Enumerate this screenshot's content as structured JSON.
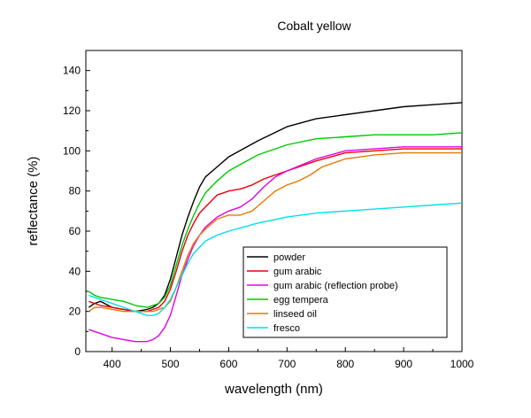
{
  "chart_data": {
    "type": "line",
    "title": "Cobalt yellow",
    "xlabel": "wavelength (nm)",
    "ylabel": "reflectance (%)",
    "xlim": [
      355,
      1000
    ],
    "ylim": [
      0,
      150
    ],
    "xticks": [
      400,
      500,
      600,
      700,
      800,
      900,
      1000
    ],
    "yticks": [
      0,
      20,
      40,
      60,
      80,
      100,
      120,
      140
    ],
    "grid": false,
    "legend_position": "bottom-right",
    "series": [
      {
        "name": "powder",
        "color": "#000000",
        "x": [
          360,
          370,
          380,
          400,
          420,
          440,
          460,
          470,
          480,
          490,
          500,
          510,
          520,
          530,
          540,
          550,
          560,
          580,
          600,
          650,
          700,
          750,
          800,
          850,
          900,
          950,
          1000
        ],
        "y": [
          22,
          24,
          25,
          22,
          21,
          20,
          21,
          22,
          24,
          28,
          36,
          47,
          58,
          67,
          75,
          82,
          87,
          92,
          97,
          105,
          112,
          116,
          118,
          120,
          122,
          123,
          124
        ]
      },
      {
        "name": "gum arabic",
        "color": "#e8000b",
        "x": [
          360,
          370,
          380,
          400,
          420,
          440,
          460,
          470,
          480,
          490,
          500,
          510,
          520,
          530,
          540,
          550,
          560,
          580,
          600,
          620,
          640,
          660,
          680,
          700,
          750,
          800,
          850,
          900,
          950,
          1000
        ],
        "y": [
          25,
          24,
          23,
          22,
          21,
          20,
          20,
          21,
          22,
          25,
          31,
          40,
          50,
          58,
          64,
          69,
          72,
          78,
          80,
          81,
          83,
          86,
          88,
          90,
          95,
          99,
          100,
          101,
          101,
          101
        ]
      },
      {
        "name": "gum arabic (reflection probe)",
        "color": "#e600e6",
        "x": [
          360,
          380,
          400,
          420,
          440,
          460,
          470,
          480,
          490,
          500,
          510,
          520,
          530,
          540,
          550,
          560,
          580,
          600,
          620,
          640,
          660,
          680,
          700,
          750,
          800,
          850,
          900,
          950,
          1000
        ],
        "y": [
          11,
          9,
          7,
          6,
          5,
          5,
          6,
          8,
          12,
          18,
          28,
          38,
          46,
          53,
          58,
          62,
          67,
          70,
          72,
          76,
          82,
          87,
          90,
          96,
          100,
          101,
          102,
          102,
          102
        ]
      },
      {
        "name": "egg tempera",
        "color": "#00c800",
        "x": [
          360,
          370,
          380,
          400,
          420,
          440,
          460,
          470,
          480,
          490,
          500,
          510,
          520,
          530,
          540,
          550,
          560,
          580,
          600,
          650,
          700,
          750,
          800,
          850,
          900,
          950,
          1000
        ],
        "y": [
          30,
          28,
          27,
          26,
          25,
          23,
          22,
          23,
          24,
          27,
          33,
          43,
          53,
          61,
          68,
          74,
          79,
          85,
          90,
          98,
          103,
          106,
          107,
          108,
          108,
          108,
          109
        ]
      },
      {
        "name": "linseed oil",
        "color": "#e87800",
        "x": [
          360,
          370,
          380,
          400,
          420,
          440,
          460,
          470,
          480,
          490,
          500,
          510,
          520,
          530,
          540,
          550,
          560,
          580,
          600,
          620,
          640,
          660,
          680,
          700,
          720,
          740,
          760,
          800,
          850,
          900,
          950,
          1000
        ],
        "y": [
          20,
          22,
          22,
          21,
          20,
          20,
          20,
          20,
          21,
          22,
          25,
          32,
          40,
          48,
          54,
          58,
          61,
          66,
          68,
          68,
          70,
          75,
          80,
          83,
          85,
          88,
          92,
          96,
          98,
          99,
          99,
          99
        ]
      },
      {
        "name": "fresco",
        "color": "#00e0e8",
        "x": [
          360,
          370,
          380,
          400,
          420,
          440,
          460,
          470,
          480,
          490,
          500,
          510,
          520,
          530,
          540,
          550,
          560,
          580,
          600,
          650,
          700,
          750,
          800,
          850,
          900,
          950,
          1000
        ],
        "y": [
          28,
          27,
          26,
          24,
          22,
          20,
          18,
          18,
          19,
          22,
          26,
          32,
          38,
          44,
          49,
          52,
          55,
          58,
          60,
          64,
          67,
          69,
          70,
          71,
          72,
          73,
          74
        ]
      }
    ]
  }
}
